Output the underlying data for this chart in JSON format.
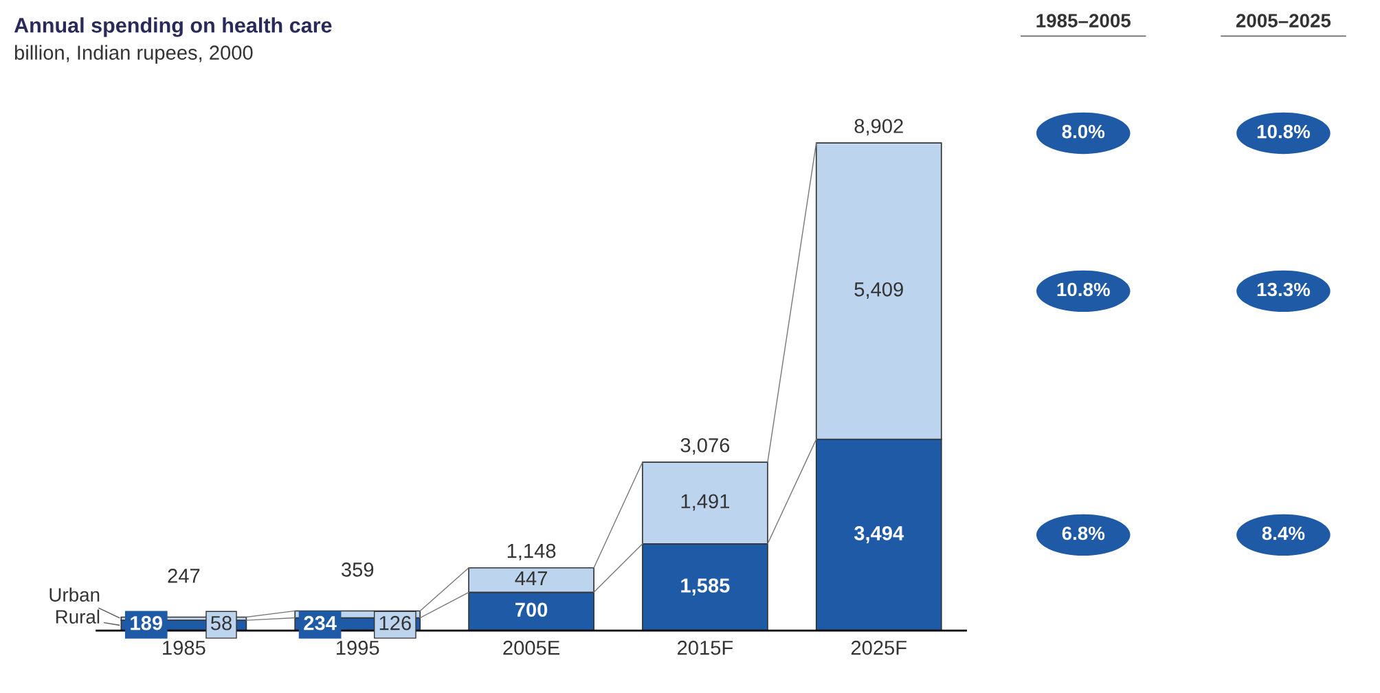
{
  "chart_data": {
    "type": "bar",
    "stacked": true,
    "title": "Annual spending on health care",
    "subtitle": "billion, Indian rupees, 2000",
    "categories": [
      "1985",
      "1995",
      "2005E",
      "2015F",
      "2025F"
    ],
    "series": [
      {
        "name": "Rural",
        "color": "#1f5aa6",
        "values": [
          189,
          234,
          700,
          1585,
          3494
        ],
        "value_labels": [
          "189",
          "234",
          "700",
          "1,585",
          "3,494"
        ]
      },
      {
        "name": "Urban",
        "color": "#bdd4ee",
        "values": [
          58,
          126,
          447,
          1491,
          5409
        ],
        "value_labels": [
          "58",
          "126",
          "447",
          "1,491",
          "5,409"
        ]
      }
    ],
    "totals": [
      "247",
      "359",
      "1,148",
      "3,076",
      "8,902"
    ],
    "annotations": [
      "1985–2005",
      "2005–2025",
      "8.0%",
      "10.8%",
      "10.8%",
      "13.3%",
      "6.8%",
      "8.4%"
    ],
    "legend": false,
    "grid": false
  }
}
